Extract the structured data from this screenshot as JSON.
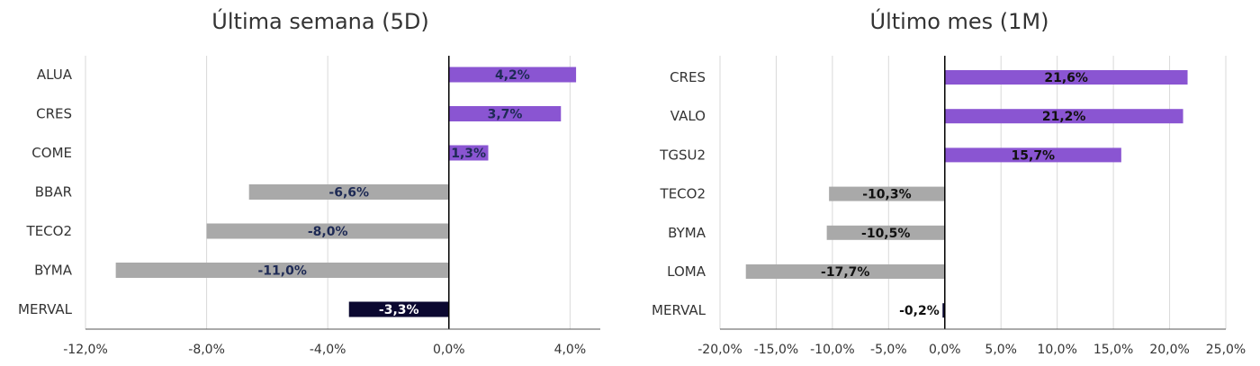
{
  "chart_data": [
    {
      "type": "bar",
      "orientation": "horizontal",
      "title": "Última semana (5D)",
      "categories": [
        "ALUA",
        "CRES",
        "COME",
        "BBAR",
        "TECO2",
        "BYMA",
        "MERVAL"
      ],
      "values": [
        4.2,
        3.7,
        1.3,
        -6.6,
        -8.0,
        -11.0,
        -3.3
      ],
      "value_labels": [
        "4,2%",
        "3,7%",
        "1,3%",
        "-6,6%",
        "-8,0%",
        "-11,0%",
        "-3,3%"
      ],
      "xlim": [
        -12,
        5
      ],
      "ticks": [
        -12,
        -8,
        -4,
        0,
        4
      ],
      "tick_labels": [
        "-12,0%",
        "-8,0%",
        "-4,0%",
        "0,0%",
        "4,0%"
      ],
      "grid": true,
      "colors": {
        "positive": "#8A55D2",
        "negative": "#A9A9A9",
        "index": "#0B0830",
        "label_dark": "#1E2A55",
        "label_light": "#FFFFFF"
      }
    },
    {
      "type": "bar",
      "orientation": "horizontal",
      "title": "Último mes (1M)",
      "categories": [
        "CRES",
        "VALO",
        "TGSU2",
        "TECO2",
        "BYMA",
        "LOMA",
        "MERVAL"
      ],
      "values": [
        21.6,
        21.2,
        15.7,
        -10.3,
        -10.5,
        -17.7,
        -0.2
      ],
      "value_labels": [
        "21,6%",
        "21,2%",
        "15,7%",
        "-10,3%",
        "-10,5%",
        "-17,7%",
        "-0,2%"
      ],
      "xlim": [
        -20,
        25
      ],
      "ticks": [
        -20,
        -15,
        -10,
        -5,
        0,
        5,
        10,
        15,
        20,
        25
      ],
      "tick_labels": [
        "-20,0%",
        "-15,0%",
        "-10,0%",
        "-5,0%",
        "0,0%",
        "5,0%",
        "10,0%",
        "15,0%",
        "20,0%",
        "25,0%"
      ],
      "grid": true,
      "colors": {
        "positive": "#8A55D2",
        "negative": "#A9A9A9",
        "index": "#0B0830",
        "label_dark": "#111111",
        "label_light": "#FFFFFF"
      }
    }
  ]
}
